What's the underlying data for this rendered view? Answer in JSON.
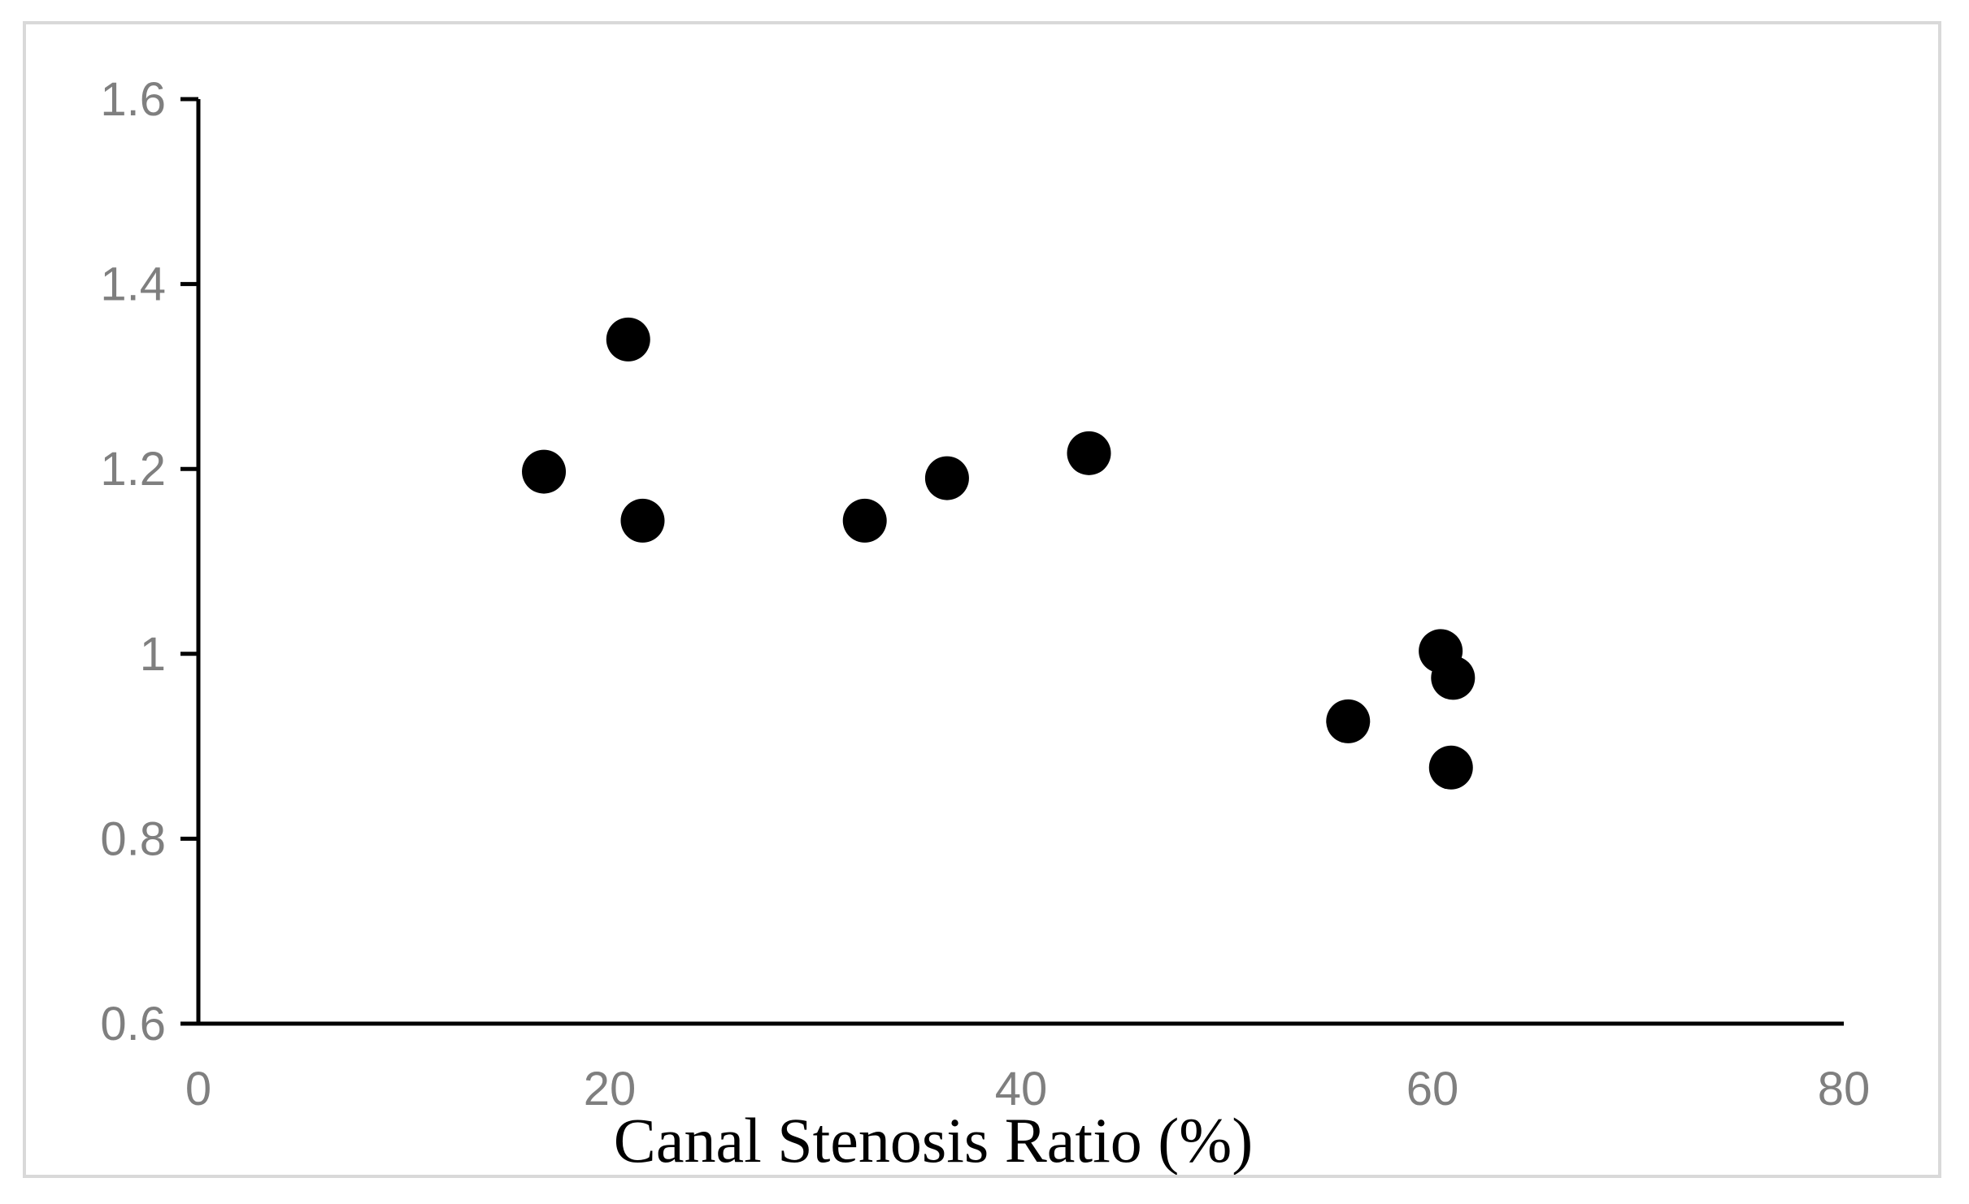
{
  "chart_data": {
    "type": "scatter",
    "title": "",
    "xlabel": "Canal Stenosis Ratio (%)",
    "ylabel": "",
    "xlim": [
      0,
      80
    ],
    "ylim": [
      0.6,
      1.6
    ],
    "x_ticks": [
      "0",
      "20",
      "40",
      "60",
      "80"
    ],
    "y_ticks": [
      "0.6",
      "0.8",
      "1",
      "1.2",
      "1.4",
      "1.6"
    ],
    "grid": false,
    "legend": "none",
    "marker_color": "#000000",
    "axis_color": "#000000",
    "tick_label_color": "#7f7f7f",
    "frame_color": "#d9d9d9",
    "series": [
      {
        "points": [
          {
            "x": 16.8,
            "y": 1.197
          },
          {
            "x": 20.9,
            "y": 1.34
          },
          {
            "x": 21.6,
            "y": 1.144
          },
          {
            "x": 32.4,
            "y": 1.144
          },
          {
            "x": 36.4,
            "y": 1.19
          },
          {
            "x": 43.3,
            "y": 1.217
          },
          {
            "x": 55.9,
            "y": 0.927
          },
          {
            "x": 60.4,
            "y": 1.003
          },
          {
            "x": 61.0,
            "y": 0.974
          },
          {
            "x": 60.9,
            "y": 0.877
          }
        ]
      }
    ]
  }
}
